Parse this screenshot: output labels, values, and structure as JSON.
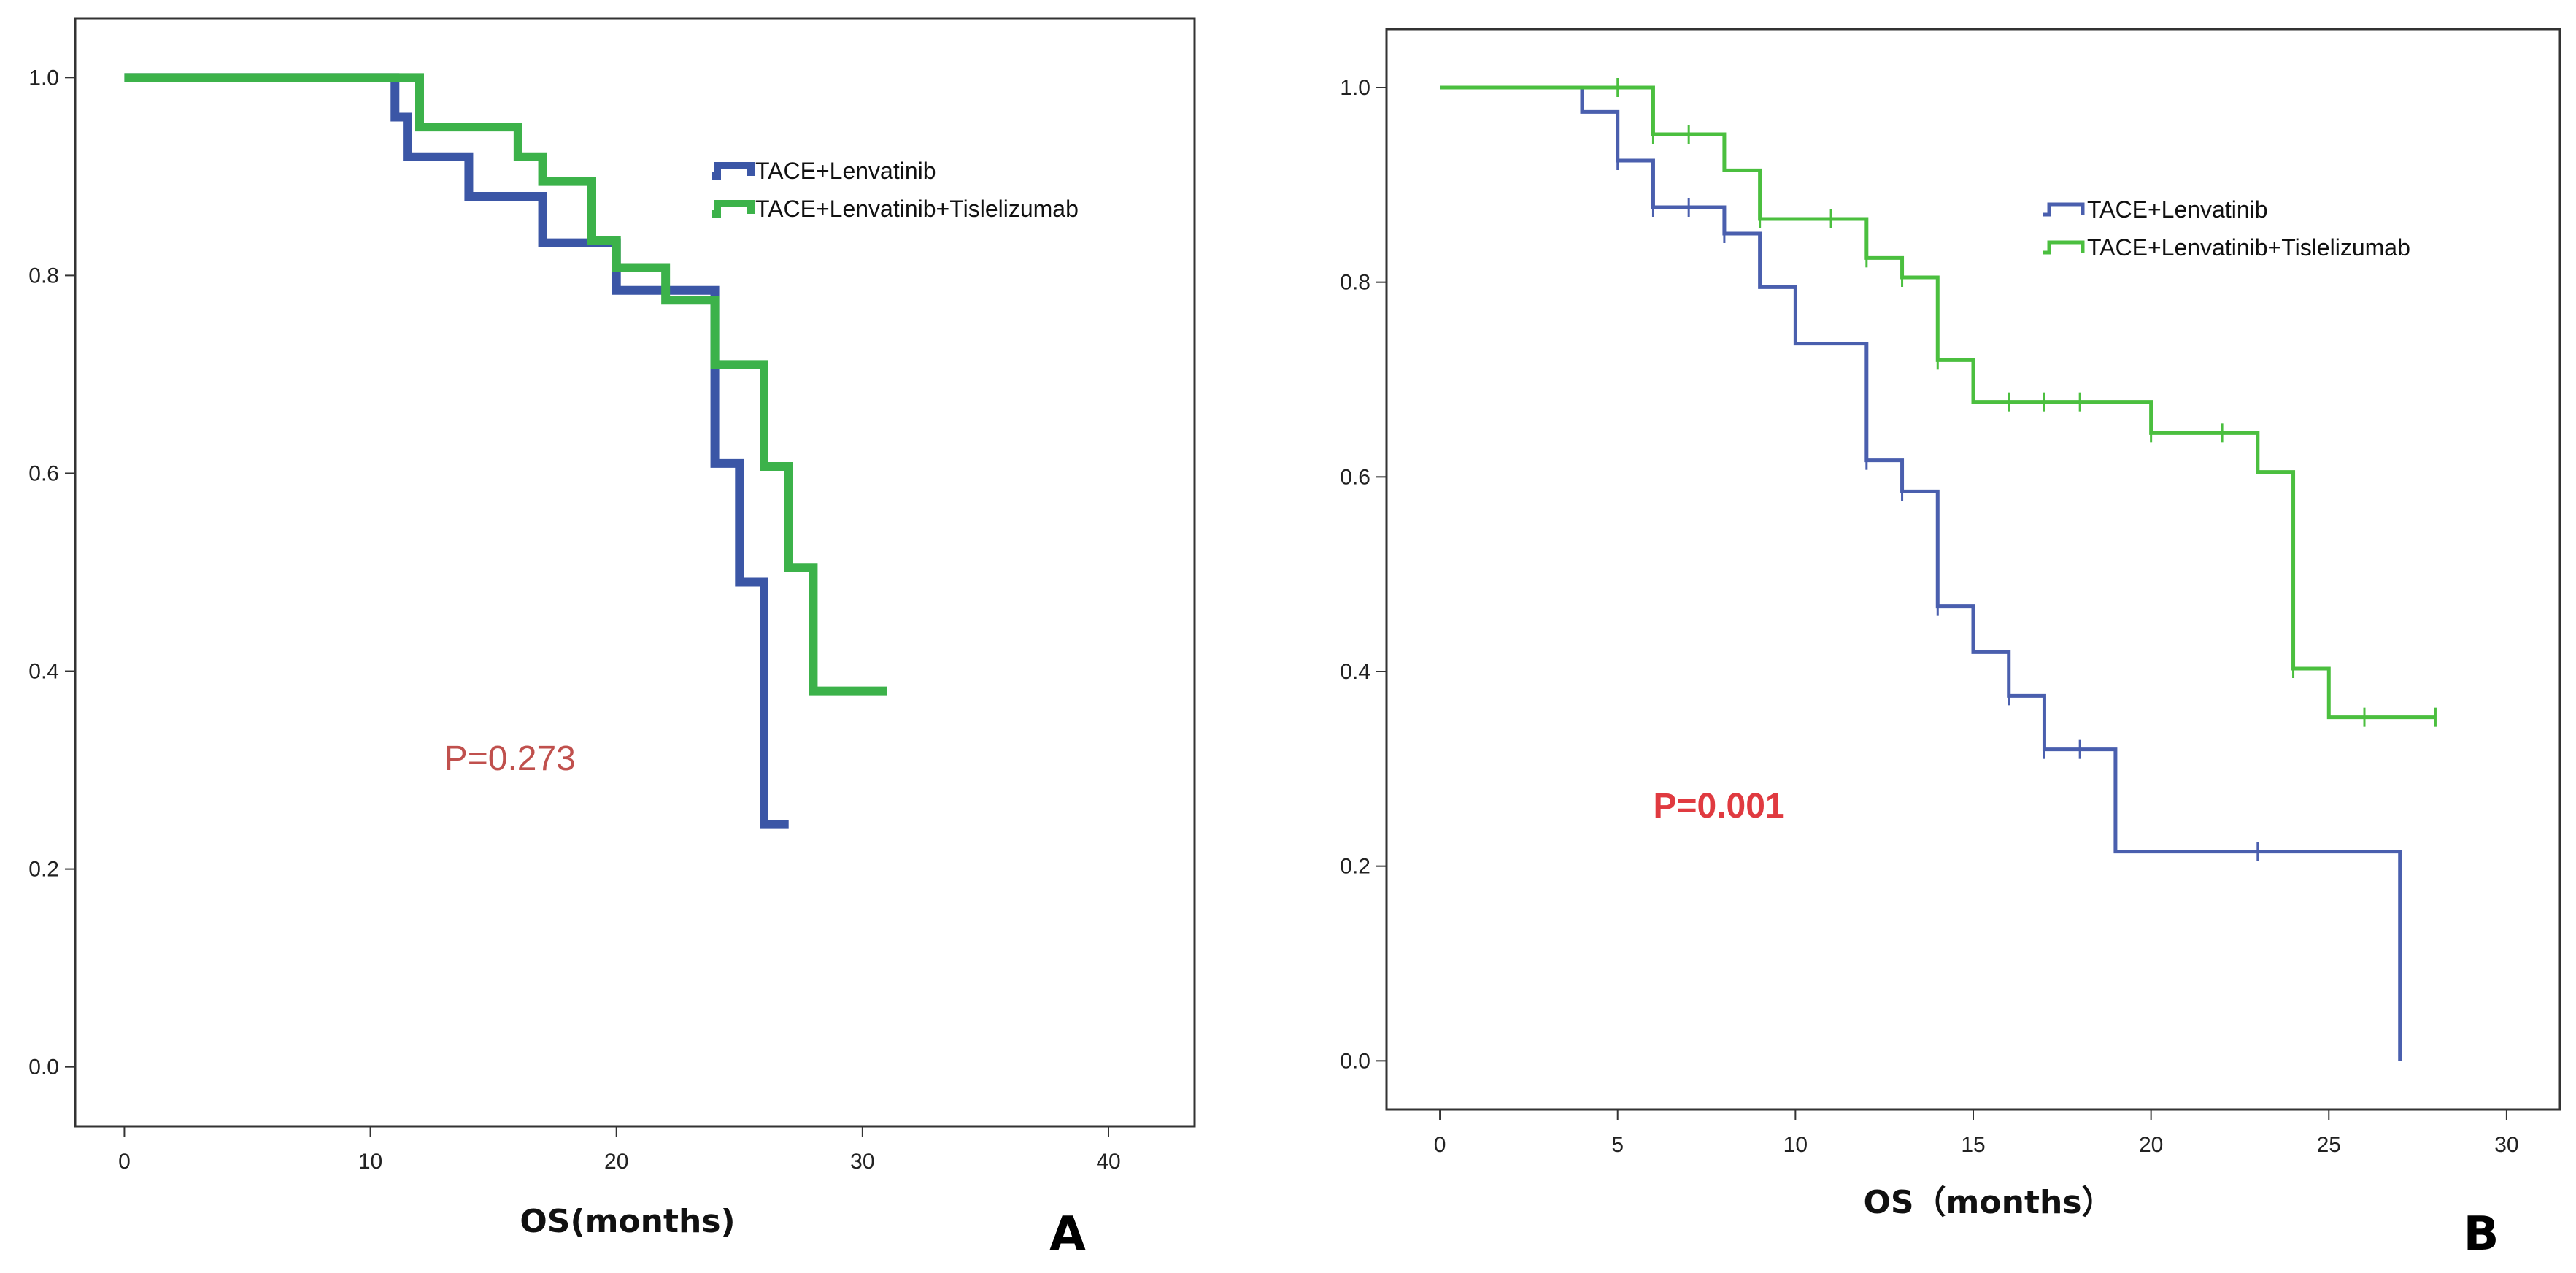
{
  "chart_data": [
    {
      "type": "line",
      "subtype": "kaplan-meier",
      "panel_label": "A",
      "title": "",
      "xlabel": "OS(months)",
      "ylabel": "",
      "xlim": [
        -2,
        43.5
      ],
      "ylim": [
        -0.06,
        1.06
      ],
      "xticks": [
        0,
        10,
        20,
        30,
        40
      ],
      "yticks": [
        0.0,
        0.2,
        0.4,
        0.6,
        0.8,
        1.0
      ],
      "xtick_labels": [
        "0",
        "10",
        "20",
        "30",
        "40"
      ],
      "ytick_labels": [
        "0.0",
        "0.2",
        "0.4",
        "0.6",
        "0.8",
        "1.0"
      ],
      "legend_position": "top-right",
      "annotation": {
        "text": "P=0.273",
        "x": 13,
        "y": 0.3,
        "color": "#c0504d",
        "bold": false
      },
      "series": [
        {
          "name": "TACE+Lenvatinib",
          "color": "#3b56a6",
          "steps": [
            [
              0,
              1.0
            ],
            [
              11,
              0.96
            ],
            [
              11.5,
              0.92
            ],
            [
              14,
              0.88
            ],
            [
              17,
              0.833
            ],
            [
              20,
              0.785
            ],
            [
              24,
              0.61
            ],
            [
              25,
              0.49
            ],
            [
              26,
              0.245
            ],
            [
              27,
              0.245
            ]
          ],
          "censors": []
        },
        {
          "name": "TACE+Lenvatinib+Tislelizumab",
          "color": "#3cb24a",
          "steps": [
            [
              0,
              1.0
            ],
            [
              12,
              0.95
            ],
            [
              16,
              0.92
            ],
            [
              17,
              0.895
            ],
            [
              19,
              0.835
            ],
            [
              20,
              0.808
            ],
            [
              22,
              0.775
            ],
            [
              24,
              0.71
            ],
            [
              26,
              0.607
            ],
            [
              27,
              0.505
            ],
            [
              28,
              0.38
            ],
            [
              31,
              0.38
            ]
          ],
          "censors": []
        }
      ]
    },
    {
      "type": "line",
      "subtype": "kaplan-meier",
      "panel_label": "B",
      "title": "",
      "xlabel": "OS（months）",
      "ylabel": "",
      "xlim": [
        -1.5,
        31.5
      ],
      "ylim": [
        -0.05,
        1.06
      ],
      "xticks": [
        0,
        5,
        10,
        15,
        20,
        25,
        30
      ],
      "yticks": [
        0.0,
        0.2,
        0.4,
        0.6,
        0.8,
        1.0
      ],
      "xtick_labels": [
        "0",
        "5",
        "10",
        "15",
        "20",
        "25",
        "30"
      ],
      "ytick_labels": [
        "0.0",
        "0.2",
        "0.4",
        "0.6",
        "0.8",
        "1.0"
      ],
      "legend_position": "top-right",
      "annotation": {
        "text": "P=0.001",
        "x": 6,
        "y": 0.25,
        "color": "#e03a40",
        "bold": true
      },
      "series": [
        {
          "name": "TACE+Lenvatinib",
          "color": "#4a5fae",
          "steps": [
            [
              0,
              1.0
            ],
            [
              4,
              0.975
            ],
            [
              5,
              0.925
            ],
            [
              6,
              0.877
            ],
            [
              8,
              0.85
            ],
            [
              9,
              0.795
            ],
            [
              10,
              0.737
            ],
            [
              12,
              0.617
            ],
            [
              13,
              0.585
            ],
            [
              14,
              0.467
            ],
            [
              15,
              0.42
            ],
            [
              16,
              0.375
            ],
            [
              17,
              0.32
            ],
            [
              19,
              0.215
            ],
            [
              27,
              0.0
            ]
          ],
          "censors": [
            [
              5,
              0.925
            ],
            [
              6,
              0.877
            ],
            [
              7,
              0.877
            ],
            [
              8,
              0.85
            ],
            [
              12,
              0.617
            ],
            [
              13,
              0.585
            ],
            [
              14,
              0.467
            ],
            [
              16,
              0.375
            ],
            [
              17,
              0.32
            ],
            [
              18,
              0.32
            ],
            [
              23,
              0.215
            ]
          ]
        },
        {
          "name": "TACE+Lenvatinib+Tislelizumab",
          "color": "#4bbf3f",
          "steps": [
            [
              0,
              1.0
            ],
            [
              6,
              0.952
            ],
            [
              8,
              0.915
            ],
            [
              9,
              0.865
            ],
            [
              12,
              0.825
            ],
            [
              13,
              0.805
            ],
            [
              14,
              0.72
            ],
            [
              15,
              0.677
            ],
            [
              20,
              0.645
            ],
            [
              23,
              0.605
            ],
            [
              24,
              0.403
            ],
            [
              25,
              0.353
            ],
            [
              28,
              0.353
            ]
          ],
          "censors": [
            [
              5,
              1.0
            ],
            [
              6,
              0.952
            ],
            [
              7,
              0.952
            ],
            [
              9,
              0.865
            ],
            [
              11,
              0.865
            ],
            [
              12,
              0.825
            ],
            [
              13,
              0.805
            ],
            [
              14,
              0.72
            ],
            [
              16,
              0.677
            ],
            [
              17,
              0.677
            ],
            [
              18,
              0.677
            ],
            [
              20,
              0.645
            ],
            [
              22,
              0.645
            ],
            [
              24,
              0.403
            ],
            [
              26,
              0.353
            ],
            [
              28,
              0.353
            ]
          ]
        }
      ]
    }
  ]
}
